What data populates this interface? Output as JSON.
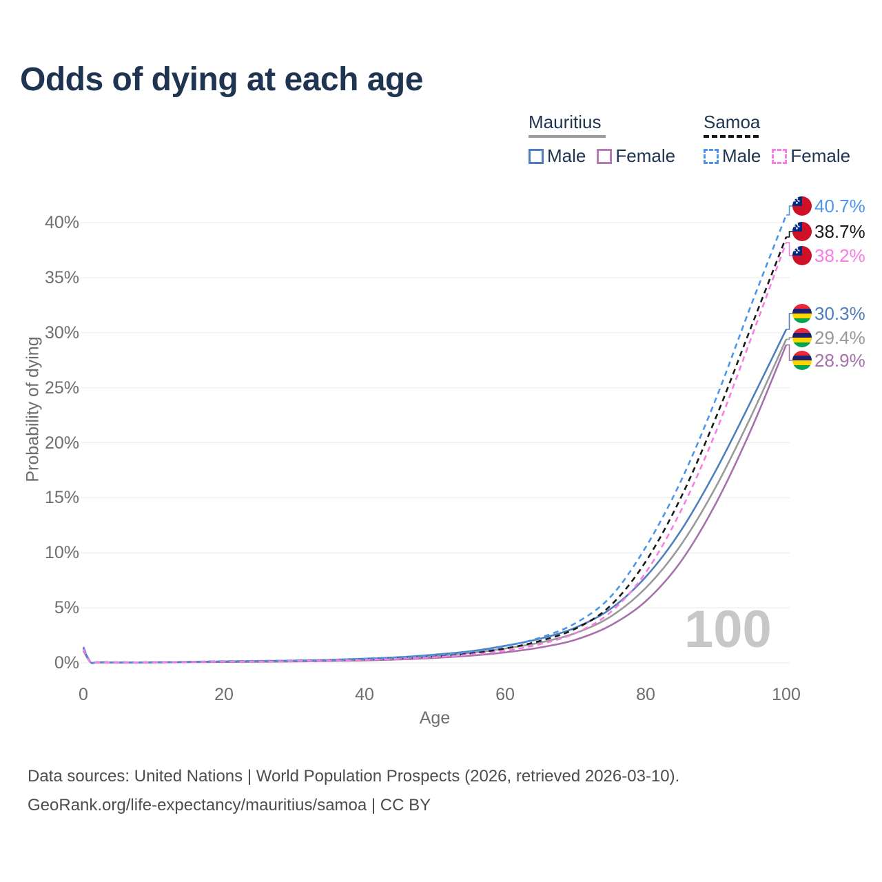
{
  "title": "Odds of dying at each age",
  "legend": {
    "groups": [
      {
        "country": "Mauritius",
        "line_style": "solid",
        "items": [
          {
            "label": "Male",
            "color": "#4e7fbb"
          },
          {
            "label": "Female",
            "color": "#b778b7"
          }
        ]
      },
      {
        "country": "Samoa",
        "line_style": "dashed",
        "items": [
          {
            "label": "Male",
            "color": "#4b96ea"
          },
          {
            "label": "Female",
            "color": "#f87ce6"
          }
        ]
      }
    ]
  },
  "chart_data": {
    "type": "line",
    "xlabel": "Age",
    "ylabel": "Probability of dying",
    "x_ticks": [
      "0",
      "20",
      "40",
      "60",
      "80",
      "100"
    ],
    "y_ticks": [
      "0%",
      "5%",
      "10%",
      "15%",
      "20%",
      "25%",
      "30%",
      "35%",
      "40%"
    ],
    "x_range": [
      0,
      100
    ],
    "y_range_percent": [
      0,
      40
    ],
    "grid": "horizontal",
    "watermark": "100",
    "ages": [
      0,
      1,
      2,
      5,
      10,
      15,
      20,
      25,
      30,
      35,
      40,
      45,
      50,
      55,
      60,
      65,
      70,
      75,
      80,
      85,
      90,
      95,
      100
    ],
    "series": [
      {
        "name": "Mauritius Female",
        "country": "Mauritius",
        "sex": "Female",
        "color": "#a771ad",
        "line_style": "solid",
        "end_label": "28.9%",
        "values": [
          1.1,
          0.06,
          0.04,
          0.03,
          0.04,
          0.06,
          0.08,
          0.1,
          0.13,
          0.17,
          0.22,
          0.31,
          0.45,
          0.65,
          0.95,
          1.4,
          2.1,
          3.4,
          5.6,
          9.2,
          14.5,
          21.2,
          28.9
        ]
      },
      {
        "name": "Mauritius Both sexes",
        "country": "Mauritius",
        "sex": "Both",
        "color": "#999999",
        "line_style": "solid",
        "end_label": "29.4%",
        "values": [
          1.2,
          0.07,
          0.05,
          0.04,
          0.05,
          0.08,
          0.11,
          0.14,
          0.17,
          0.22,
          0.3,
          0.42,
          0.62,
          0.9,
          1.3,
          1.85,
          2.7,
          4.2,
          6.8,
          10.7,
          16.0,
          22.4,
          29.4
        ]
      },
      {
        "name": "Mauritius Male",
        "country": "Mauritius",
        "sex": "Male",
        "color": "#4e7fbb",
        "line_style": "solid",
        "end_label": "30.3%",
        "values": [
          1.3,
          0.08,
          0.06,
          0.04,
          0.05,
          0.09,
          0.13,
          0.16,
          0.2,
          0.27,
          0.38,
          0.52,
          0.75,
          1.05,
          1.55,
          2.2,
          3.2,
          4.9,
          7.8,
          12.0,
          17.5,
          23.8,
          30.3
        ]
      },
      {
        "name": "Samoa Both sexes",
        "country": "Samoa",
        "sex": "Both",
        "color": "#1a1a1a",
        "line_style": "dashed",
        "end_label": "38.7%",
        "values": [
          1.35,
          0.09,
          0.06,
          0.05,
          0.05,
          0.09,
          0.13,
          0.16,
          0.19,
          0.25,
          0.32,
          0.43,
          0.6,
          0.85,
          1.3,
          2.0,
          3.1,
          5.2,
          9.2,
          15.0,
          22.3,
          30.5,
          38.7
        ]
      },
      {
        "name": "Samoa Male",
        "country": "Samoa",
        "sex": "Male",
        "color": "#4b96ea",
        "line_style": "dashed",
        "end_label": "40.7%",
        "values": [
          1.45,
          0.1,
          0.07,
          0.05,
          0.06,
          0.1,
          0.15,
          0.18,
          0.22,
          0.28,
          0.38,
          0.5,
          0.7,
          1.0,
          1.5,
          2.3,
          3.6,
          6.0,
          10.5,
          16.5,
          24.0,
          32.5,
          40.7
        ]
      },
      {
        "name": "Samoa Female",
        "country": "Samoa",
        "sex": "Female",
        "color": "#f87ce6",
        "line_style": "dashed",
        "end_label": "38.2%",
        "values": [
          1.25,
          0.08,
          0.06,
          0.04,
          0.05,
          0.08,
          0.11,
          0.13,
          0.16,
          0.21,
          0.27,
          0.37,
          0.52,
          0.75,
          1.1,
          1.7,
          2.7,
          4.6,
          8.2,
          13.8,
          21.0,
          29.5,
          38.2
        ]
      }
    ]
  },
  "footer": {
    "line1": "Data sources: United Nations | World Population Prospects (2026, retrieved 2026-03-10).",
    "line2": "GeoRank.org/life-expectancy/mauritius/samoa | CC BY"
  }
}
